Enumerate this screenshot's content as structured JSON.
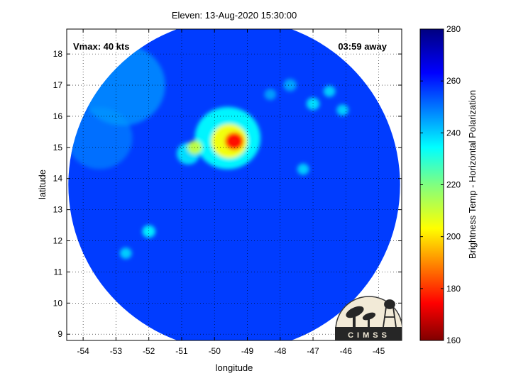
{
  "chart_data": {
    "type": "heatmap",
    "title": "Eleven: 13-Aug-2020 15:30:00",
    "xlabel": "longitude",
    "ylabel": "latitude",
    "xlim": [
      -54.5,
      -44.3
    ],
    "ylim": [
      8.8,
      18.8
    ],
    "x_ticks": [
      "-54",
      "-53",
      "-52",
      "-51",
      "-50",
      "-49",
      "-48",
      "-47",
      "-46",
      "-45"
    ],
    "y_ticks": [
      "9",
      "10",
      "11",
      "12",
      "13",
      "14",
      "15",
      "16",
      "17",
      "18"
    ],
    "grid": true,
    "annotations": {
      "vmax": "Vmax: 40 kts",
      "time_away": "03:59 away"
    },
    "colorbar": {
      "label": "Brightness Temp - Horizontal Polarization",
      "range": [
        160,
        280
      ],
      "ticks": [
        "160",
        "180",
        "200",
        "220",
        "240",
        "260",
        "280"
      ],
      "colormap": "jet"
    },
    "swath": {
      "center_lon": -49.4,
      "center_lat": 13.8,
      "radius_deg": 5.05
    },
    "storm_center": {
      "lon": -49.4,
      "lat": 15.2,
      "min_temp": 175
    },
    "features": [
      {
        "lon": -49.4,
        "lat": 15.2,
        "temp": 175,
        "r": 0.28
      },
      {
        "lon": -49.55,
        "lat": 15.2,
        "temp": 205,
        "r": 0.55
      },
      {
        "lon": -50.6,
        "lat": 15.0,
        "temp": 212,
        "r": 0.22
      },
      {
        "lon": -49.6,
        "lat": 15.3,
        "temp": 235,
        "r": 1.0
      },
      {
        "lon": -50.8,
        "lat": 14.8,
        "temp": 238,
        "r": 0.35
      },
      {
        "lon": -47.0,
        "lat": 16.4,
        "temp": 238,
        "r": 0.2
      },
      {
        "lon": -46.1,
        "lat": 16.2,
        "temp": 240,
        "r": 0.18
      },
      {
        "lon": -46.5,
        "lat": 16.8,
        "temp": 240,
        "r": 0.18
      },
      {
        "lon": -47.7,
        "lat": 17.0,
        "temp": 242,
        "r": 0.2
      },
      {
        "lon": -48.3,
        "lat": 16.7,
        "temp": 243,
        "r": 0.18
      },
      {
        "lon": -47.3,
        "lat": 14.3,
        "temp": 240,
        "r": 0.18
      },
      {
        "lon": -52.0,
        "lat": 12.3,
        "temp": 236,
        "r": 0.2
      },
      {
        "lon": -52.7,
        "lat": 11.6,
        "temp": 240,
        "r": 0.18
      },
      {
        "lon": -52.8,
        "lat": 17.0,
        "temp": 247,
        "r": 1.3
      },
      {
        "lon": -53.5,
        "lat": 15.3,
        "temp": 250,
        "r": 1.0
      }
    ],
    "background_temp": 258,
    "logo_text": "CIMSS"
  }
}
